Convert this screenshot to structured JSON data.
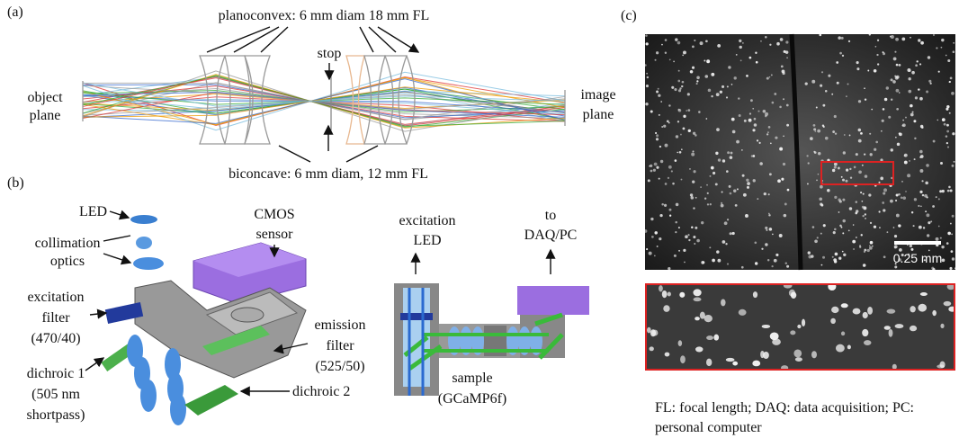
{
  "panel_labels": [
    "(a)",
    "(b)",
    "(c)"
  ],
  "panel_a": {
    "top_label": "planoconvex: 6 mm diam 18 mm FL",
    "stop_label": "stop",
    "object_plane": [
      "object",
      "plane"
    ],
    "image_plane": [
      "image",
      "plane"
    ],
    "bottom_label": "biconcave: 6 mm diam, 12 mm FL"
  },
  "panel_b": {
    "led": "LED",
    "collimation": [
      "collimation",
      "optics"
    ],
    "cmos": [
      "CMOS",
      "sensor"
    ],
    "excitation_filter": [
      "excitation",
      "filter",
      "(470/40)"
    ],
    "dichroic_1": [
      "dichroic 1",
      "(505 nm",
      "shortpass)"
    ],
    "emission_filter": [
      "emission",
      "filter",
      "(525/50)"
    ],
    "dichroic_2": "dichroic 2",
    "excitation_led": [
      "excitation",
      "LED"
    ],
    "to_daq": [
      "to",
      "DAQ/PC"
    ],
    "sample": [
      "sample",
      "(GCaMP6f)"
    ]
  },
  "panel_c": {
    "scale_bar": "0.25 mm",
    "caption": [
      "FL: focal length; DAQ: data acquisition; PC:",
      "personal computer"
    ]
  }
}
